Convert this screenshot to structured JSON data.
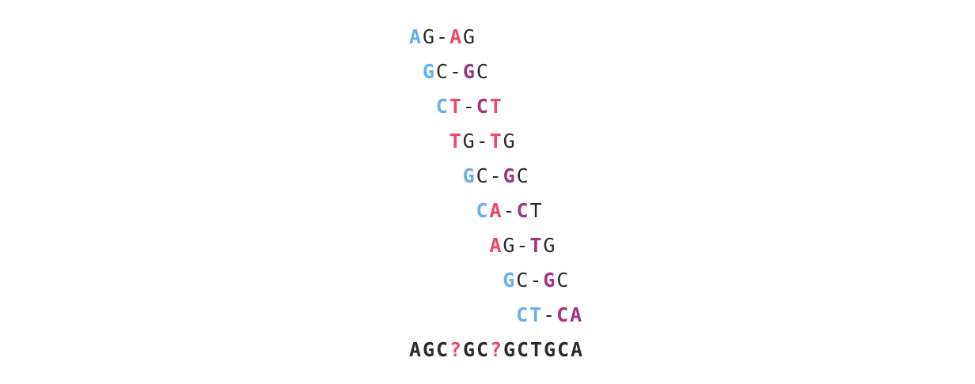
{
  "colors": {
    "blue": "#6aaee8",
    "red": "#f0456a",
    "purple": "#a0367e",
    "dark": "#2b2b2b",
    "question": "#f0456a"
  },
  "pairs": [
    {
      "text": "AG-AG",
      "styles": [
        [
          "blue",
          true
        ],
        [
          "dark",
          false
        ],
        [
          "dark",
          false
        ],
        [
          "red",
          true
        ],
        [
          "dark",
          false
        ]
      ]
    },
    {
      "text": "GC-GC",
      "styles": [
        [
          "blue",
          true
        ],
        [
          "dark",
          false
        ],
        [
          "dark",
          false
        ],
        [
          "purple",
          true
        ],
        [
          "dark",
          false
        ]
      ]
    },
    {
      "text": "CT-CT",
      "styles": [
        [
          "blue",
          true
        ],
        [
          "red",
          true
        ],
        [
          "dark",
          false
        ],
        [
          "purple",
          true
        ],
        [
          "red",
          true
        ]
      ]
    },
    {
      "text": "TG-TG",
      "styles": [
        [
          "red",
          true
        ],
        [
          "dark",
          false
        ],
        [
          "dark",
          false
        ],
        [
          "red",
          true
        ],
        [
          "dark",
          false
        ]
      ]
    },
    {
      "text": "GC-GC",
      "styles": [
        [
          "blue",
          true
        ],
        [
          "dark",
          false
        ],
        [
          "dark",
          false
        ],
        [
          "purple",
          true
        ],
        [
          "dark",
          false
        ]
      ]
    },
    {
      "text": "CA-CT",
      "styles": [
        [
          "blue",
          true
        ],
        [
          "red",
          true
        ],
        [
          "dark",
          false
        ],
        [
          "purple",
          true
        ],
        [
          "dark",
          false
        ]
      ]
    },
    {
      "text": "AG-TG",
      "styles": [
        [
          "red",
          true
        ],
        [
          "dark",
          false
        ],
        [
          "dark",
          false
        ],
        [
          "purple",
          true
        ],
        [
          "dark",
          false
        ]
      ]
    },
    {
      "text": "GC-GC",
      "styles": [
        [
          "blue",
          true
        ],
        [
          "dark",
          false
        ],
        [
          "dark",
          false
        ],
        [
          "purple",
          true
        ],
        [
          "dark",
          false
        ]
      ]
    },
    {
      "text": "CT-CA",
      "styles": [
        [
          "blue",
          true
        ],
        [
          "blue",
          true
        ],
        [
          "dark",
          false
        ],
        [
          "purple",
          true
        ],
        [
          "purple",
          true
        ]
      ]
    }
  ],
  "result": {
    "text": "AGC?GC?GCTGCA",
    "question_indices": [
      3,
      6
    ]
  }
}
